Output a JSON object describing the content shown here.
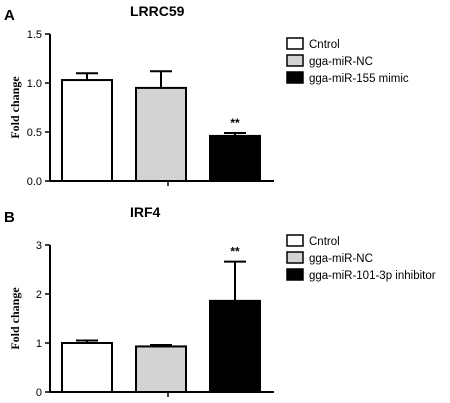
{
  "chart_data": [
    {
      "type": "bar",
      "panel": "A",
      "title": "LRRC59",
      "ylabel": "Fold change",
      "ylim": [
        0,
        1.5
      ],
      "yticks": [
        "0.0",
        "0.5",
        "1.0",
        "1.5"
      ],
      "categories": [
        "Cntrol",
        "gga-miR-NC",
        "gga-miR-155 mimic"
      ],
      "values": [
        1.03,
        0.95,
        0.46
      ],
      "errors": [
        0.07,
        0.17,
        0.03
      ],
      "annotations": [
        "",
        "",
        "**"
      ],
      "colors": [
        "#ffffff",
        "#d3d3d3",
        "#000000"
      ],
      "legend_position": "top-right"
    },
    {
      "type": "bar",
      "panel": "B",
      "title": "IRF4",
      "ylabel": "Fold change",
      "ylim": [
        0,
        3
      ],
      "yticks": [
        "0",
        "1",
        "2",
        "3"
      ],
      "categories": [
        "Cntrol",
        "gga-miR-NC",
        "gga-miR-101-3p inhibitor"
      ],
      "values": [
        1.0,
        0.93,
        1.86
      ],
      "errors": [
        0.05,
        0.03,
        0.8
      ],
      "annotations": [
        "",
        "",
        "**"
      ],
      "colors": [
        "#ffffff",
        "#d3d3d3",
        "#000000"
      ],
      "legend_position": "top-right"
    }
  ]
}
